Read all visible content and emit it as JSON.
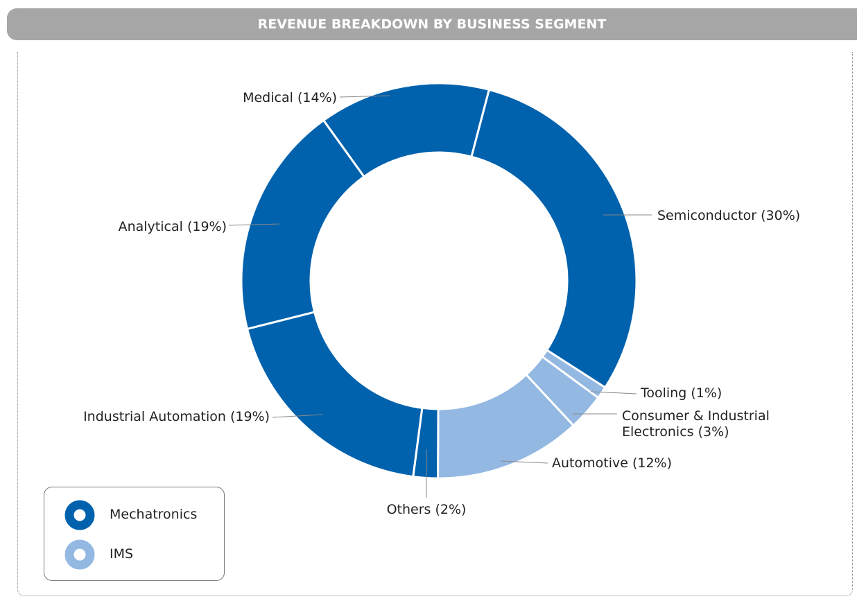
{
  "chart_data": {
    "type": "donut",
    "title": "REVENUE BREAKDOWN BY BUSINESS SEGMENT",
    "categories": [
      "Semiconductor",
      "Tooling",
      "Consumer & Industrial Electronics",
      "Automotive",
      "Others",
      "Industrial Automation",
      "Analytical",
      "Medical"
    ],
    "values": [
      30,
      1,
      3,
      12,
      2,
      19,
      19,
      14
    ],
    "value_labels": [
      "(30%)",
      "(1%)",
      "(3%)",
      "(12%)",
      "(2%)",
      "(19%)",
      "(19%)",
      "(14%)"
    ],
    "colors": [
      "#0061ad",
      "#93b8e2",
      "#93b8e2",
      "#93b8e2",
      "#0061ad",
      "#0061ad",
      "#0061ad",
      "#0061ad"
    ],
    "legend": [
      {
        "name": "Mechatronics",
        "color": "#0061ad"
      },
      {
        "name": "IMS",
        "color": "#93b8e2"
      }
    ]
  }
}
